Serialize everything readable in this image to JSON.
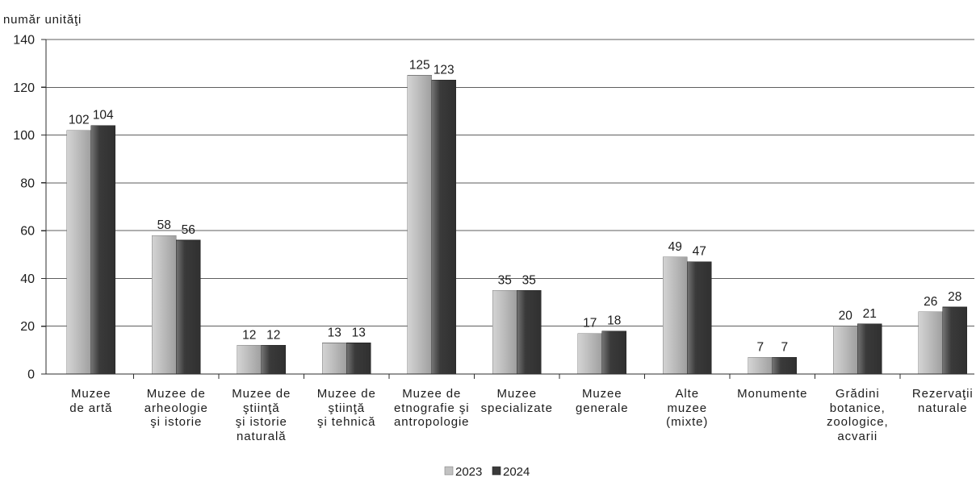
{
  "chart_data": {
    "type": "bar",
    "ylabel": "număr unităţi",
    "ylim": [
      0,
      140
    ],
    "yticks": [
      0,
      20,
      40,
      60,
      80,
      100,
      120,
      140
    ],
    "grid": true,
    "data_labels": true,
    "legend_position": "bottom",
    "categories": [
      "Muzee\nde artă",
      "Muzee de\narheologie\nşi istorie",
      "Muzee de\nştiinţă\nşi istorie\nnaturală",
      "Muzee de\nştiinţă\nşi tehnică",
      "Muzee de\netnografie şi\nantropologie",
      "Muzee\nspecializate",
      "Muzee\ngenerale",
      "Alte\nmuzee\n(mixte)",
      "Monumente",
      "Grădini\nbotanice,\nzoologice,\nacvarii",
      "Rezervaţii\nnaturale"
    ],
    "series": [
      {
        "name": "2023",
        "color": "#c2c2c2",
        "values": [
          102,
          58,
          12,
          13,
          125,
          35,
          17,
          49,
          7,
          20,
          26
        ]
      },
      {
        "name": "2024",
        "color": "#3a3a3a",
        "values": [
          104,
          56,
          12,
          13,
          123,
          35,
          18,
          47,
          7,
          21,
          28
        ]
      }
    ]
  }
}
